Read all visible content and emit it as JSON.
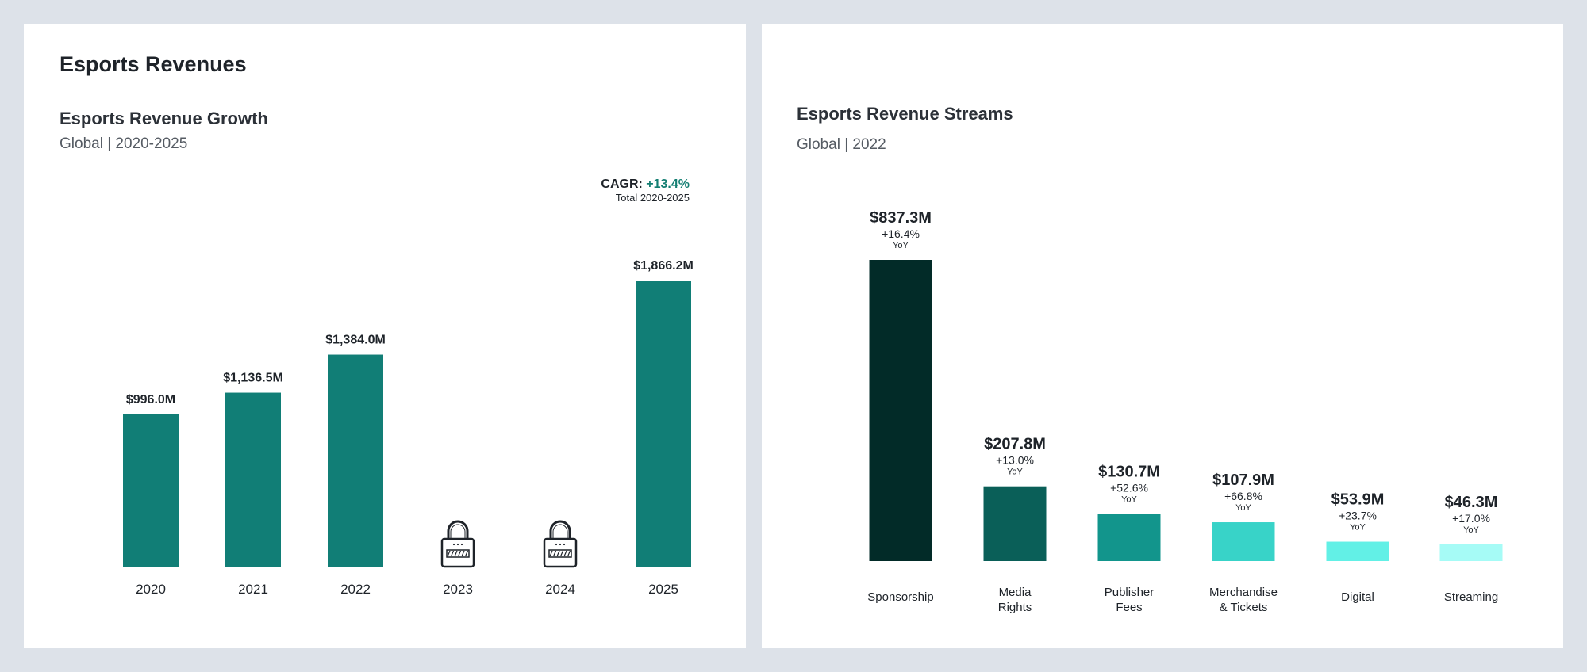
{
  "page_title": "Esports Revenues",
  "colors": {
    "background": "#dde2e9",
    "panel": "#ffffff",
    "growth_bar": "#117e76",
    "cagr_positive": "#137e72",
    "streams": [
      "#022b28",
      "#0a5f58",
      "#12958c",
      "#38d3c8",
      "#62f0e6",
      "#a6fbf6"
    ]
  },
  "chart_data": [
    {
      "type": "bar",
      "title": "Esports Revenue Growth",
      "subtitle": "Global | 2020-2025",
      "categories": [
        "2020",
        "2021",
        "2022",
        "2023",
        "2024",
        "2025"
      ],
      "values": [
        996.0,
        1136.5,
        1384.0,
        null,
        null,
        1866.2
      ],
      "data_labels": [
        "$996.0M",
        "$1,136.5M",
        "$1,384.0M",
        "",
        "",
        "$1,866.2M"
      ],
      "locked": [
        false,
        false,
        false,
        true,
        true,
        false
      ],
      "locked_icon": "padlock-icon",
      "unit": "$M",
      "ylim": [
        0,
        1866.2
      ],
      "cagr": {
        "label": "CAGR:",
        "value": "+13.4%",
        "note": "Total 2020-2025"
      },
      "grid": false,
      "legend": "none"
    },
    {
      "type": "bar",
      "title": "Esports Revenue Streams",
      "subtitle": "Global | 2022",
      "categories": [
        [
          "Sponsorship"
        ],
        [
          "Media",
          "Rights"
        ],
        [
          "Publisher",
          "Fees"
        ],
        [
          "Merchandise",
          "& Tickets"
        ],
        [
          "Digital"
        ],
        [
          "Streaming"
        ]
      ],
      "values": [
        837.3,
        207.8,
        130.7,
        107.9,
        53.9,
        46.3
      ],
      "data_labels": [
        "$837.3M",
        "$207.8M",
        "$130.7M",
        "$107.9M",
        "$53.9M",
        "$46.3M"
      ],
      "yoy": [
        "+16.4%",
        "+13.0%",
        "+52.6%",
        "+66.8%",
        "+23.7%",
        "+17.0%"
      ],
      "yoy_unit": "YoY",
      "unit": "$M",
      "ylim": [
        0,
        837.3
      ],
      "grid": false,
      "legend": "none"
    }
  ]
}
